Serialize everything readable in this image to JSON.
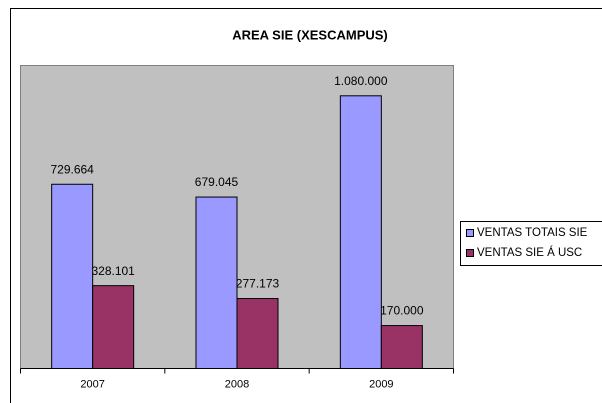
{
  "chart_data": {
    "type": "bar",
    "title": "AREA SIE (XESCAMPUS)",
    "categories": [
      "2007",
      "2008",
      "2009"
    ],
    "series": [
      {
        "name": "VENTAS TOTAIS SIE",
        "color": "#9999ff",
        "values": [
          729664,
          679045,
          1080000
        ],
        "value_labels": [
          "729.664",
          "679.045",
          "1.080.000"
        ]
      },
      {
        "name": "VENTAS SIE Á USC",
        "color": "#993366",
        "values": [
          328101,
          277173,
          170000
        ],
        "value_labels": [
          "328.101",
          "277.173",
          "170.000"
        ]
      }
    ],
    "ylim": [
      0,
      1200000
    ],
    "legend": "right"
  }
}
